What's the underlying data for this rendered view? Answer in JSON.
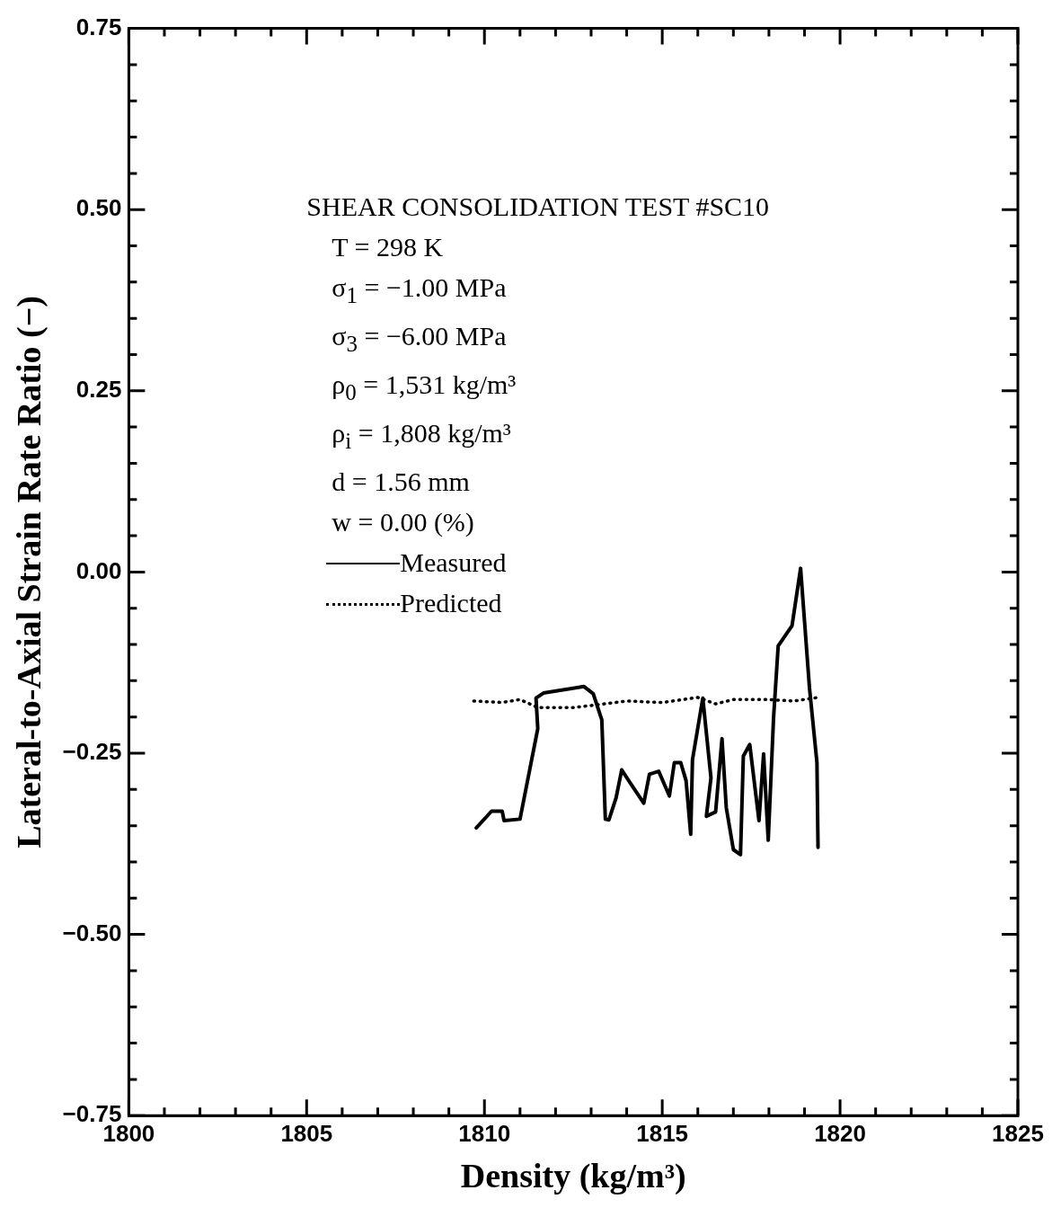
{
  "chart_data": {
    "type": "line",
    "xlabel": "Density (kg/m³)",
    "ylabel": "Lateral-to-Axial Strain Rate Ratio (−)",
    "xlim": [
      1800,
      1825
    ],
    "ylim": [
      -0.75,
      0.75
    ],
    "xticks": [
      1800,
      {
        "value": 1801,
        "label": null
      },
      {
        "value": 1802,
        "label": null
      },
      {
        "value": 1803,
        "label": null
      },
      {
        "value": 1804,
        "label": null
      },
      1805,
      {
        "value": 1806,
        "label": null
      },
      {
        "value": 1807,
        "label": null
      },
      {
        "value": 1808,
        "label": null
      },
      {
        "value": 1809,
        "label": null
      },
      1810,
      {
        "value": 1811,
        "label": null
      },
      {
        "value": 1812,
        "label": null
      },
      {
        "value": 1813,
        "label": null
      },
      {
        "value": 1814,
        "label": null
      },
      1815,
      {
        "value": 1816,
        "label": null
      },
      {
        "value": 1817,
        "label": null
      },
      {
        "value": 1818,
        "label": null
      },
      {
        "value": 1819,
        "label": null
      },
      1820,
      {
        "value": 1821,
        "label": null
      },
      {
        "value": 1822,
        "label": null
      },
      {
        "value": 1823,
        "label": null
      },
      {
        "value": 1824,
        "label": null
      },
      1825
    ],
    "yticks": [
      {
        "value": -0.75,
        "label": "−0.75"
      },
      {
        "value": -0.7,
        "label": null
      },
      {
        "value": -0.65,
        "label": null
      },
      {
        "value": -0.6,
        "label": null
      },
      {
        "value": -0.55,
        "label": null
      },
      {
        "value": -0.5,
        "label": "−0.50"
      },
      {
        "value": -0.45,
        "label": null
      },
      {
        "value": -0.4,
        "label": null
      },
      {
        "value": -0.35,
        "label": null
      },
      {
        "value": -0.3,
        "label": null
      },
      {
        "value": -0.25,
        "label": "−0.25"
      },
      {
        "value": -0.2,
        "label": null
      },
      {
        "value": -0.15,
        "label": null
      },
      {
        "value": -0.1,
        "label": null
      },
      {
        "value": -0.05,
        "label": null
      },
      {
        "value": 0,
        "label": "0.00"
      },
      {
        "value": 0.05,
        "label": null
      },
      {
        "value": 0.1,
        "label": null
      },
      {
        "value": 0.15,
        "label": null
      },
      {
        "value": 0.2,
        "label": null
      },
      {
        "value": 0.25,
        "label": "0.25"
      },
      {
        "value": 0.3,
        "label": null
      },
      {
        "value": 0.35,
        "label": null
      },
      {
        "value": 0.4,
        "label": null
      },
      {
        "value": 0.45,
        "label": null
      },
      {
        "value": 0.5,
        "label": "0.50"
      },
      {
        "value": 0.55,
        "label": null
      },
      {
        "value": 0.6,
        "label": null
      },
      {
        "value": 0.65,
        "label": null
      },
      {
        "value": 0.7,
        "label": null
      },
      {
        "value": 0.75,
        "label": "0.75"
      }
    ],
    "legend": "left",
    "marker": "none",
    "annotations": [
      "SHEAR CONSOLIDATION TEST #SC10",
      "T = 298 K",
      "σ$_{1}$ = −1.00 MPa",
      "σ$_{3}$ = −6.00 MPa",
      "ρ$_{0}$ = 1,531 kg/m³",
      "ρ$_{i}$ = 1,808 kg/m³",
      "d = 1.56 mm",
      "w = 0.00 (%)"
    ],
    "series": [
      {
        "name": "Measured",
        "color": "#000000",
        "line_style": "solid",
        "x": [
          1809.77,
          1810.2,
          1810.5,
          1810.55,
          1811.0,
          1811.5,
          1811.45,
          1811.66,
          1812.8,
          1813.06,
          1813.3,
          1813.4,
          1813.5,
          1813.7,
          1813.86,
          1814.1,
          1814.48,
          1814.64,
          1814.9,
          1815.2,
          1815.34,
          1815.52,
          1815.67,
          1815.8,
          1815.85,
          1816.14,
          1816.37,
          1816.24,
          1816.5,
          1816.68,
          1816.8,
          1817.0,
          1817.2,
          1817.28,
          1817.46,
          1817.72,
          1817.85,
          1817.98,
          1818.13,
          1818.26,
          1818.65,
          1818.89,
          1819.14,
          1819.35,
          1819.38
        ],
        "values": [
          -0.353,
          -0.33,
          -0.33,
          -0.343,
          -0.341,
          -0.216,
          -0.174,
          -0.167,
          -0.158,
          -0.168,
          -0.204,
          -0.341,
          -0.342,
          -0.312,
          -0.273,
          -0.291,
          -0.319,
          -0.279,
          -0.275,
          -0.309,
          -0.263,
          -0.263,
          -0.288,
          -0.362,
          -0.259,
          -0.174,
          -0.284,
          -0.337,
          -0.331,
          -0.23,
          -0.325,
          -0.383,
          -0.39,
          -0.254,
          -0.238,
          -0.343,
          -0.251,
          -0.37,
          -0.201,
          -0.102,
          -0.074,
          0.005,
          -0.16,
          -0.263,
          -0.38
        ]
      },
      {
        "name": "Predicted",
        "color": "#000000",
        "line_style": "dotted",
        "x": [
          1809.7,
          1810.5,
          1811.0,
          1811.5,
          1812.5,
          1813.2,
          1814.0,
          1815.0,
          1816.0,
          1816.5,
          1817.0,
          1818.0,
          1818.7,
          1819.4
        ],
        "values": [
          -0.178,
          -0.18,
          -0.176,
          -0.187,
          -0.187,
          -0.183,
          -0.178,
          -0.18,
          -0.173,
          -0.182,
          -0.176,
          -0.176,
          -0.178,
          -0.173
        ]
      }
    ]
  }
}
